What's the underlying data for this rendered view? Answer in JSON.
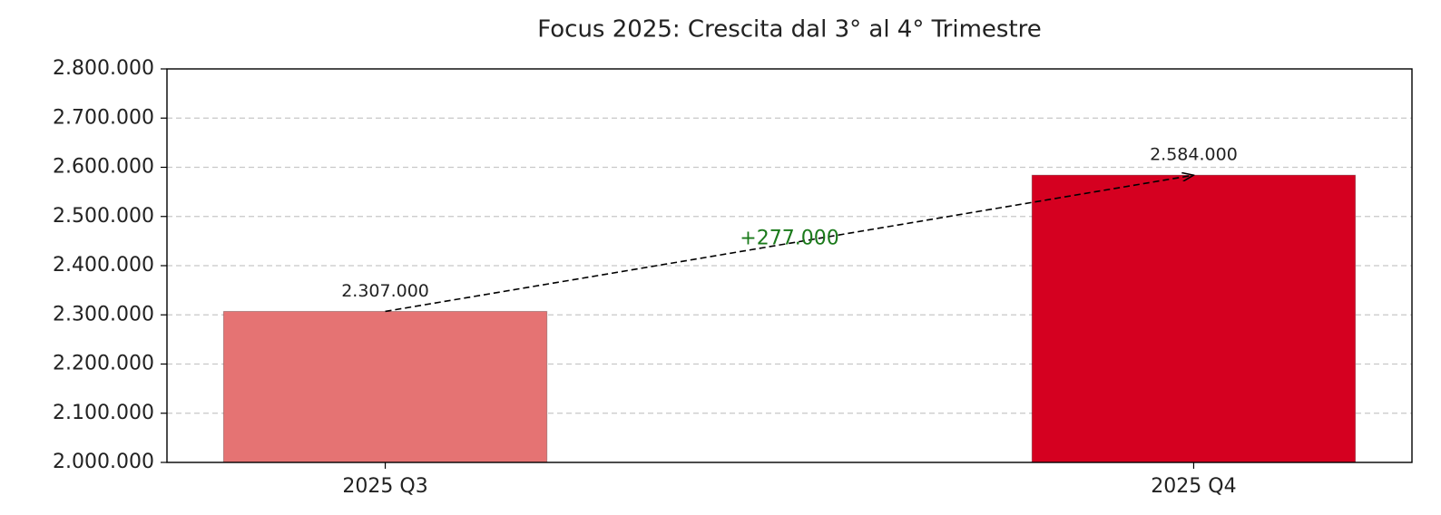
{
  "chart_data": {
    "type": "bar",
    "title": "Focus 2025: Crescita dal 3° al 4° Trimestre",
    "categories": [
      "2025 Q3",
      "2025 Q4"
    ],
    "values": [
      2307000,
      2584000
    ],
    "value_labels": [
      "2.307.000",
      "2.584.000"
    ],
    "colors": [
      "#e57373",
      "#d50020"
    ],
    "annotation": "+277.000",
    "annotation_color": "#1b7a1b",
    "ylim": [
      2000000,
      2800000
    ],
    "yticks": [
      {
        "value": 2000000,
        "label": "2.000.000"
      },
      {
        "value": 2100000,
        "label": "2.100.000"
      },
      {
        "value": 2200000,
        "label": "2.200.000"
      },
      {
        "value": 2300000,
        "label": "2.300.000"
      },
      {
        "value": 2400000,
        "label": "2.400.000"
      },
      {
        "value": 2500000,
        "label": "2.500.000"
      },
      {
        "value": 2600000,
        "label": "2.600.000"
      },
      {
        "value": 2700000,
        "label": "2.700.000"
      },
      {
        "value": 2800000,
        "label": "2.800.000"
      }
    ],
    "grid": true
  }
}
